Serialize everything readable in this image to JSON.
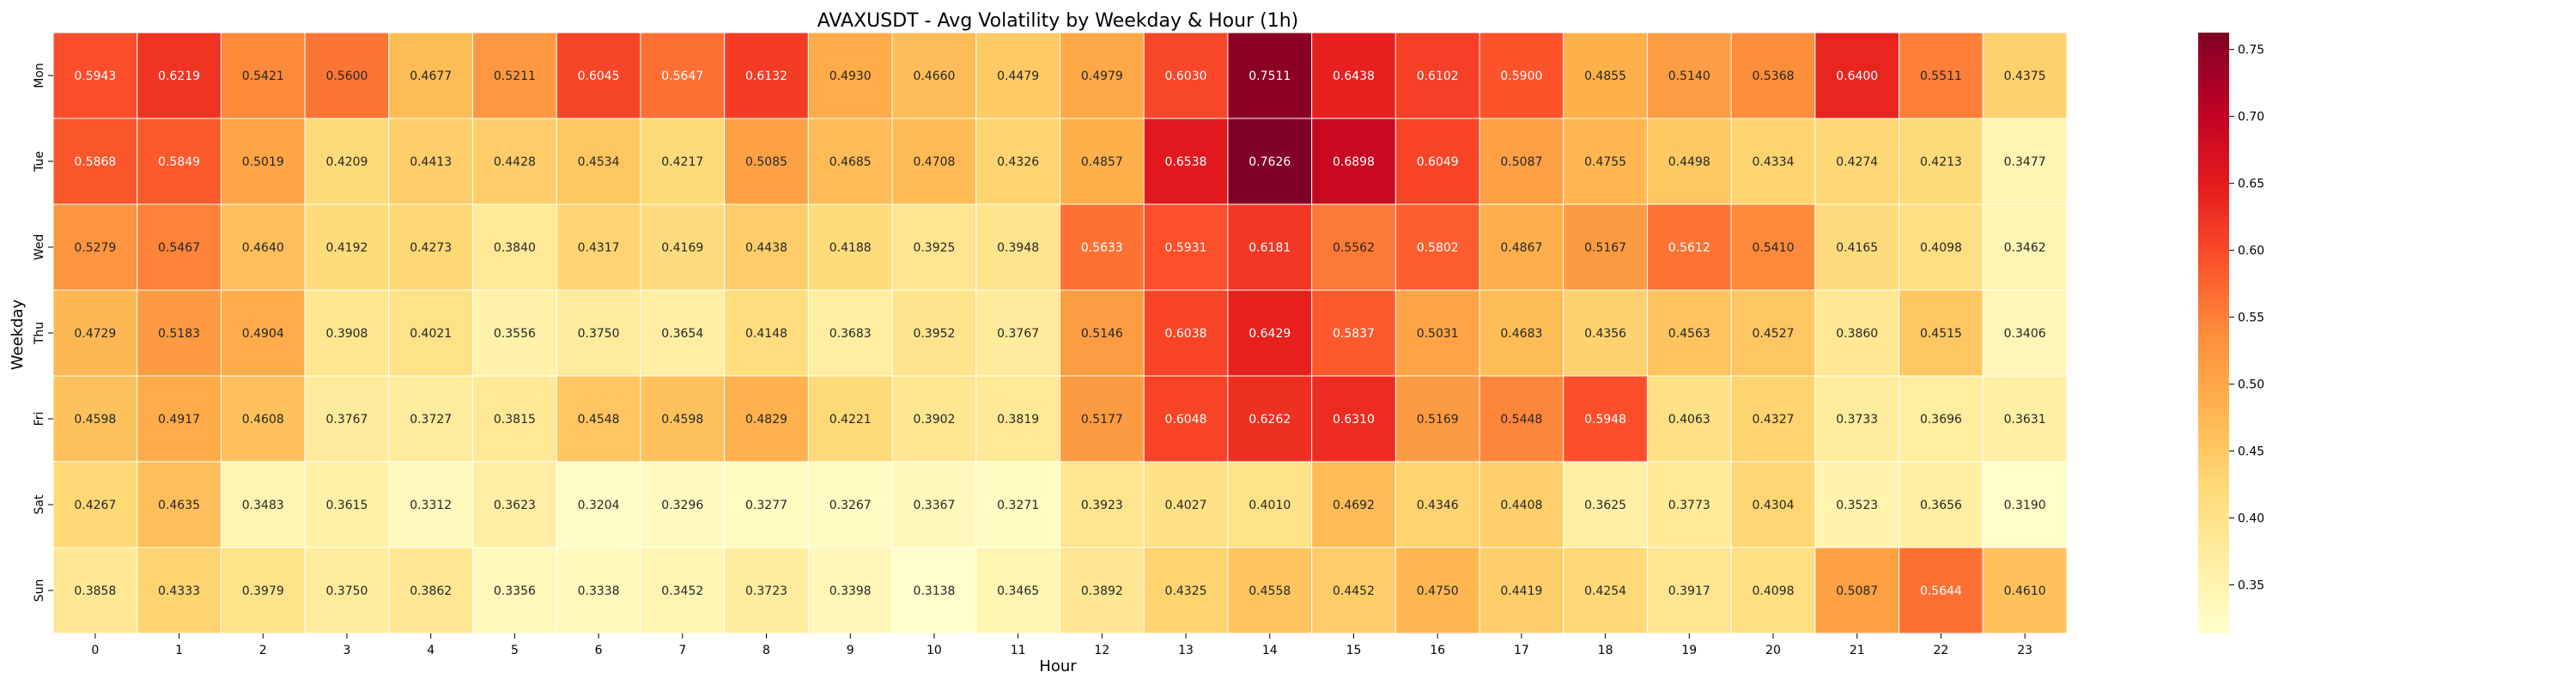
{
  "chart_data": {
    "type": "heatmap",
    "title": "AVAXUSDT - Avg Volatility by Weekday & Hour (1h)",
    "xlabel": "Hour",
    "ylabel": "Weekday",
    "x_categories": [
      "0",
      "1",
      "2",
      "3",
      "4",
      "5",
      "6",
      "7",
      "8",
      "9",
      "10",
      "11",
      "12",
      "13",
      "14",
      "15",
      "16",
      "17",
      "18",
      "19",
      "20",
      "21",
      "22",
      "23"
    ],
    "y_categories": [
      "Mon",
      "Tue",
      "Wed",
      "Thu",
      "Fri",
      "Sat",
      "Sun"
    ],
    "values": [
      [
        0.5943,
        0.6219,
        0.5421,
        0.56,
        0.4677,
        0.5211,
        0.6045,
        0.5647,
        0.6132,
        0.493,
        0.466,
        0.4479,
        0.4979,
        0.603,
        0.7511,
        0.6438,
        0.6102,
        0.59,
        0.4855,
        0.514,
        0.5368,
        0.64,
        0.5511,
        0.4375
      ],
      [
        0.5868,
        0.5849,
        0.5019,
        0.4209,
        0.4413,
        0.4428,
        0.4534,
        0.4217,
        0.5085,
        0.4685,
        0.4708,
        0.4326,
        0.4857,
        0.6538,
        0.7626,
        0.6898,
        0.6049,
        0.5087,
        0.4755,
        0.4498,
        0.4334,
        0.4274,
        0.4213,
        0.3477
      ],
      [
        0.5279,
        0.5467,
        0.464,
        0.4192,
        0.4273,
        0.384,
        0.4317,
        0.4169,
        0.4438,
        0.4188,
        0.3925,
        0.3948,
        0.5633,
        0.5931,
        0.6181,
        0.5562,
        0.5802,
        0.4867,
        0.5167,
        0.5612,
        0.541,
        0.4165,
        0.4098,
        0.3462
      ],
      [
        0.4729,
        0.5183,
        0.4904,
        0.3908,
        0.4021,
        0.3556,
        0.375,
        0.3654,
        0.4148,
        0.3683,
        0.3952,
        0.3767,
        0.5146,
        0.6038,
        0.6429,
        0.5837,
        0.5031,
        0.4683,
        0.4356,
        0.4563,
        0.4527,
        0.386,
        0.4515,
        0.3406
      ],
      [
        0.4598,
        0.4917,
        0.4608,
        0.3767,
        0.3727,
        0.3815,
        0.4548,
        0.4598,
        0.4829,
        0.4221,
        0.3902,
        0.3819,
        0.5177,
        0.6048,
        0.6262,
        0.631,
        0.5169,
        0.5448,
        0.5948,
        0.4063,
        0.4327,
        0.3733,
        0.3696,
        0.3631
      ],
      [
        0.4267,
        0.4635,
        0.3483,
        0.3615,
        0.3312,
        0.3623,
        0.3204,
        0.3296,
        0.3277,
        0.3267,
        0.3367,
        0.3271,
        0.3923,
        0.4027,
        0.401,
        0.4692,
        0.4346,
        0.4408,
        0.3625,
        0.3773,
        0.4304,
        0.3523,
        0.3656,
        0.319
      ],
      [
        0.3858,
        0.4333,
        0.3979,
        0.375,
        0.3862,
        0.3356,
        0.3338,
        0.3452,
        0.3723,
        0.3398,
        0.3138,
        0.3465,
        0.3892,
        0.4325,
        0.4558,
        0.4452,
        0.475,
        0.4419,
        0.4254,
        0.3917,
        0.4098,
        0.5087,
        0.5644,
        0.461
      ]
    ],
    "colormap": "YlOrRd",
    "color_range": [
      0.3138,
      0.7626
    ],
    "colorbar_ticks": [
      "0.35",
      "0.40",
      "0.45",
      "0.50",
      "0.55",
      "0.60",
      "0.65",
      "0.70",
      "0.75"
    ],
    "colorbar_tick_values": [
      0.35,
      0.4,
      0.45,
      0.5,
      0.55,
      0.6,
      0.65,
      0.7,
      0.75
    ],
    "grid": false,
    "legend": "colorbar right"
  }
}
